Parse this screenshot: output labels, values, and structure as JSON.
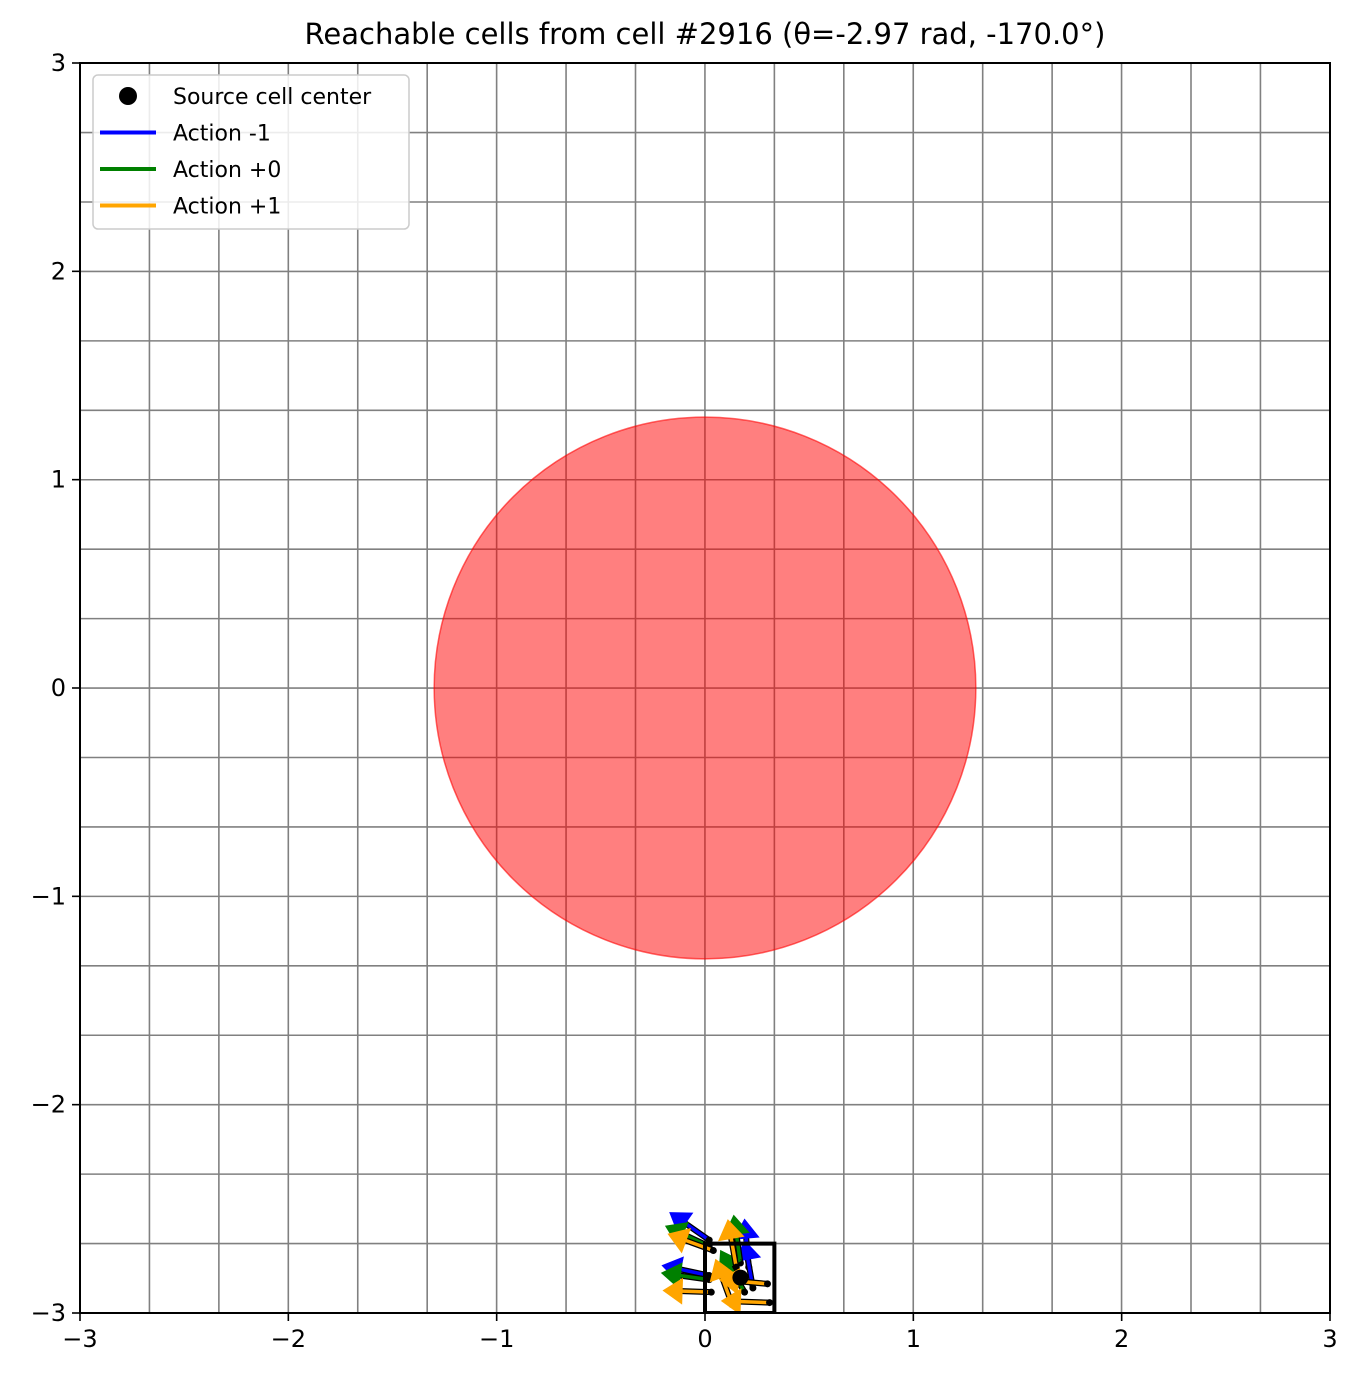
{
  "chart_data": {
    "type": "scatter",
    "title": "Reachable cells from cell #2916 (θ=-2.97 rad, -170.0°)",
    "xlabel": "",
    "ylabel": "",
    "xlim": [
      -3,
      3
    ],
    "ylim": [
      -3,
      3
    ],
    "x_ticks": [
      -3,
      -2,
      -1,
      0,
      1,
      2,
      3
    ],
    "y_ticks": [
      -3,
      -2,
      -1,
      0,
      1,
      2,
      3
    ],
    "x_tick_labels": [
      "−3",
      "−2",
      "−1",
      "0",
      "1",
      "2",
      "3"
    ],
    "y_tick_labels": [
      "−3",
      "−2",
      "−1",
      "0",
      "1",
      "2",
      "3"
    ],
    "grid": true,
    "grid_cell_size": 0.3333,
    "legend": {
      "placement": "top-left",
      "entries": [
        {
          "label": "Source cell center",
          "marker": "dot",
          "color": "#000000"
        },
        {
          "label": "Action -1",
          "marker": "line",
          "color": "#0000ff"
        },
        {
          "label": "Action +0",
          "marker": "line",
          "color": "#008000"
        },
        {
          "label": "Action +1",
          "marker": "line",
          "color": "#ffa500"
        }
      ]
    },
    "obstacle": {
      "shape": "circle",
      "center": [
        0,
        0
      ],
      "radius": 1.3,
      "color": "#ff0000",
      "alpha": 0.5
    },
    "source_cell": {
      "x0": 0.0,
      "y0": -3.0,
      "x1": 0.333,
      "y1": -2.667,
      "center": [
        0.17,
        -2.83
      ]
    },
    "arrows": [
      {
        "action": "Action -1",
        "color": "#0000ff",
        "x": 0.02,
        "y": -2.65,
        "theta_deg": 145
      },
      {
        "action": "Action -1",
        "color": "#0000ff",
        "x": 0.02,
        "y": -2.82,
        "theta_deg": 168
      },
      {
        "action": "Action -1",
        "color": "#0000ff",
        "x": 0.21,
        "y": -2.78,
        "theta_deg": 95
      },
      {
        "action": "Action -1",
        "color": "#0000ff",
        "x": 0.23,
        "y": -2.88,
        "theta_deg": 100
      },
      {
        "action": "Action +0",
        "color": "#008000",
        "x": 0.02,
        "y": -2.68,
        "theta_deg": 155
      },
      {
        "action": "Action +0",
        "color": "#008000",
        "x": 0.02,
        "y": -2.84,
        "theta_deg": 172
      },
      {
        "action": "Action +0",
        "color": "#008000",
        "x": 0.17,
        "y": -2.76,
        "theta_deg": 98
      },
      {
        "action": "Action +0",
        "color": "#008000",
        "x": 0.19,
        "y": -2.9,
        "theta_deg": 120
      },
      {
        "action": "Action +1",
        "color": "#ffa500",
        "x": 0.04,
        "y": -2.7,
        "theta_deg": 160
      },
      {
        "action": "Action +1",
        "color": "#ffa500",
        "x": 0.03,
        "y": -2.9,
        "theta_deg": 178
      },
      {
        "action": "Action +1",
        "color": "#ffa500",
        "x": 0.15,
        "y": -2.78,
        "theta_deg": 100
      },
      {
        "action": "Action +1",
        "color": "#ffa500",
        "x": 0.13,
        "y": -2.96,
        "theta_deg": 110
      },
      {
        "action": "Action +1",
        "color": "#ffa500",
        "x": 0.3,
        "y": -2.86,
        "theta_deg": 175
      },
      {
        "action": "Action +1",
        "color": "#ffa500",
        "x": 0.31,
        "y": -2.95,
        "theta_deg": 178
      }
    ]
  }
}
